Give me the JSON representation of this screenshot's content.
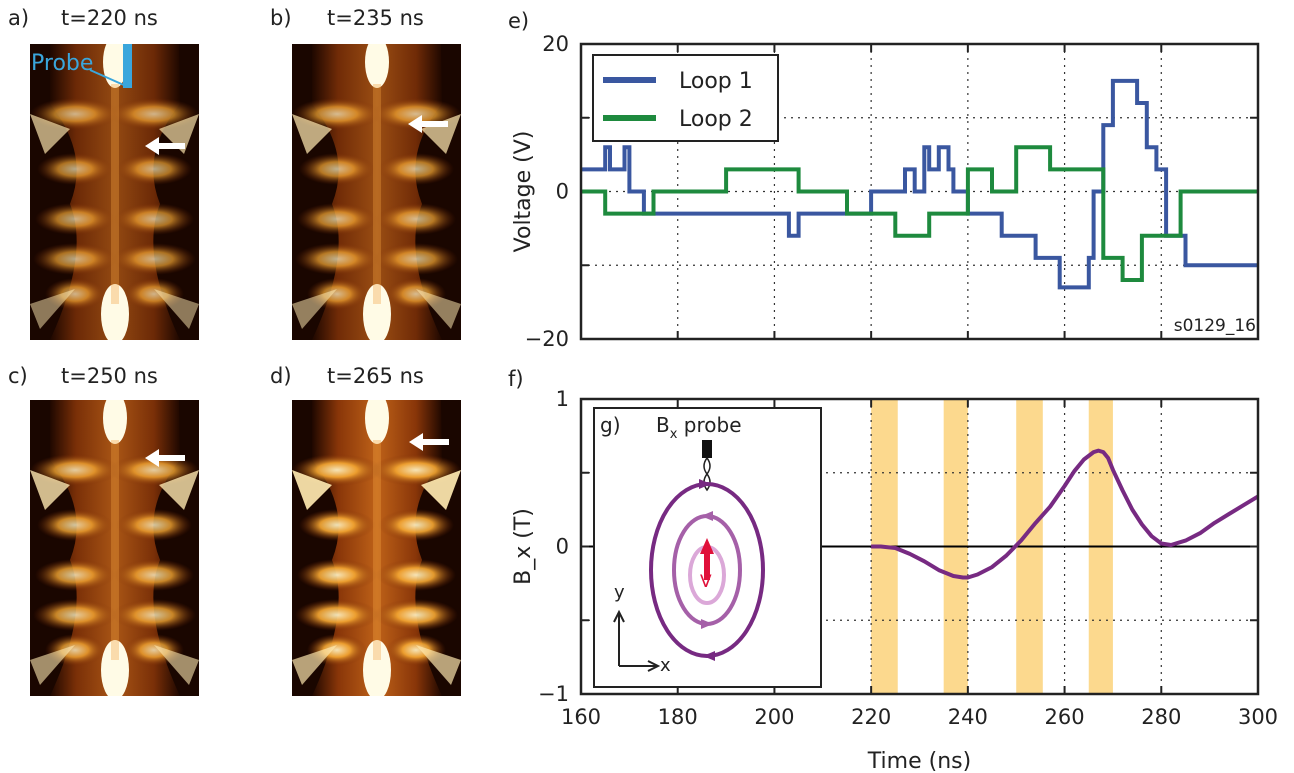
{
  "images": [
    {
      "panel": "a)",
      "title": "t=220 ns",
      "probe_label": "Probe"
    },
    {
      "panel": "b)",
      "title": "t=235 ns"
    },
    {
      "panel": "c)",
      "title": "t=250 ns"
    },
    {
      "panel": "d)",
      "title": "t=265 ns"
    }
  ],
  "colors": {
    "loop1": "#3a57a0",
    "loop2": "#1e8a3e",
    "bx": "#772a82",
    "band": "#fbd27a",
    "probe": "#3aa6dc"
  },
  "chart_data": [
    {
      "panel": "e)",
      "type": "line",
      "ylabel": "Voltage (V)",
      "xlabel": "",
      "xlim": [
        160,
        300
      ],
      "ylim": [
        -20,
        20
      ],
      "xticks": [
        160,
        180,
        200,
        220,
        240,
        260,
        280,
        300
      ],
      "yticks": [
        -20,
        0,
        20
      ],
      "ytick_labels": [
        "−20",
        "0",
        "20"
      ],
      "grid": true,
      "legend": "top-left",
      "annotation": "s0129_16",
      "series": [
        {
          "name": "Loop 1",
          "step": true,
          "x": [
            160,
            165,
            165,
            166,
            166,
            169,
            169,
            170,
            170,
            173,
            173,
            181,
            181,
            203,
            203,
            205,
            205,
            220,
            220,
            227,
            227,
            229,
            229,
            231,
            231,
            232,
            232,
            234,
            234,
            236,
            236,
            237,
            237,
            240,
            240,
            247,
            247,
            254,
            254,
            259,
            259,
            265,
            265,
            266,
            266,
            268,
            268,
            270,
            270,
            275,
            275,
            277,
            277,
            279,
            279,
            281,
            281,
            285,
            285,
            300
          ],
          "y": [
            3,
            3,
            6,
            6,
            3,
            3,
            6,
            6,
            0,
            0,
            -3,
            -3,
            -3,
            -3,
            -6,
            -6,
            -3,
            -3,
            0,
            0,
            3,
            3,
            0,
            0,
            6,
            6,
            3,
            3,
            6,
            6,
            3,
            3,
            0,
            0,
            -3,
            -3,
            -6,
            -6,
            -9,
            -9,
            -13,
            -13,
            -9,
            -9,
            0,
            0,
            9,
            9,
            15,
            15,
            12,
            12,
            6,
            6,
            3,
            3,
            -6,
            -6,
            -10,
            -10
          ]
        },
        {
          "name": "Loop 2",
          "step": true,
          "x": [
            160,
            165,
            165,
            175,
            175,
            190,
            190,
            205,
            205,
            215,
            215,
            225,
            225,
            232,
            232,
            240,
            240,
            245,
            245,
            250,
            250,
            257,
            257,
            268,
            268,
            272,
            272,
            276,
            276,
            284,
            284,
            300
          ],
          "y": [
            0,
            0,
            -3,
            -3,
            0,
            0,
            3,
            3,
            0,
            0,
            -3,
            -3,
            -6,
            -6,
            -3,
            -3,
            3,
            3,
            0,
            0,
            6,
            6,
            3,
            3,
            -9,
            -9,
            -12,
            -12,
            -6,
            -6,
            0,
            0
          ]
        }
      ]
    },
    {
      "panel": "f)",
      "type": "line",
      "ylabel": "B_x (T)",
      "xlabel": "Time (ns)",
      "xlim": [
        160,
        300
      ],
      "ylim": [
        -1,
        1
      ],
      "xticks": [
        160,
        180,
        200,
        220,
        240,
        260,
        280,
        300
      ],
      "yticks": [
        -1,
        0,
        1
      ],
      "ytick_labels": [
        "−1",
        "0",
        "1"
      ],
      "grid": true,
      "bands": [
        [
          220,
          225.5
        ],
        [
          235,
          240
        ],
        [
          250,
          255.5
        ],
        [
          265,
          270
        ]
      ],
      "series": [
        {
          "x": [
            220,
            222,
            225,
            228,
            231,
            234,
            237,
            239,
            240,
            242,
            245,
            248,
            251,
            254,
            257,
            260,
            262,
            264,
            266,
            267,
            268,
            269,
            270,
            272,
            274,
            276,
            278,
            280,
            282,
            283,
            285,
            288,
            291,
            294,
            297,
            300
          ],
          "y": [
            0,
            0,
            -0.01,
            -0.05,
            -0.1,
            -0.16,
            -0.2,
            -0.21,
            -0.21,
            -0.19,
            -0.14,
            -0.06,
            0.04,
            0.16,
            0.27,
            0.41,
            0.51,
            0.59,
            0.64,
            0.65,
            0.64,
            0.6,
            0.52,
            0.38,
            0.25,
            0.15,
            0.07,
            0.02,
            0.01,
            0.02,
            0.04,
            0.09,
            0.16,
            0.22,
            0.28,
            0.34
          ]
        }
      ]
    }
  ],
  "inset": {
    "panel": "g)",
    "probe_label": "B",
    "probe_sub": "x",
    "probe_label_tail": " probe",
    "axis_y": "y",
    "axis_x": "x",
    "v_label": "V"
  }
}
